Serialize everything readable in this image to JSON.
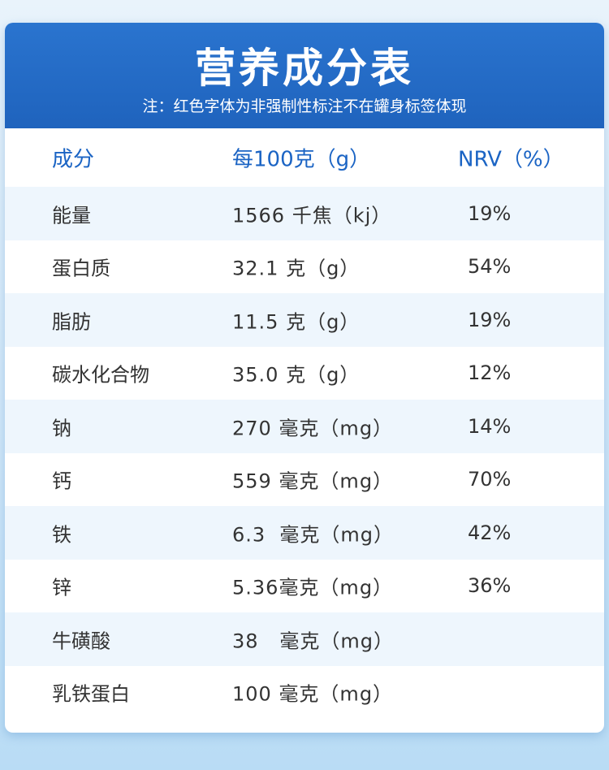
{
  "title": "营养成分表",
  "note": "注：红色字体为非强制性标注不在罐身标签体现",
  "header": {
    "col1": "成分",
    "col2": "每100克（g）",
    "col3": "NRV（%）"
  },
  "rows": [
    {
      "name": "能量",
      "amount": "1566 千焦（kj）",
      "nrv": "19%"
    },
    {
      "name": "蛋白质",
      "amount": "32.1 克（g）",
      "nrv": "54%"
    },
    {
      "name": "脂肪",
      "amount": "11.5 克（g）",
      "nrv": "19%"
    },
    {
      "name": "碳水化合物",
      "amount": "35.0 克（g）",
      "nrv": "12%"
    },
    {
      "name": "钠",
      "amount": "270 毫克（mg）",
      "nrv": "14%"
    },
    {
      "name": "钙",
      "amount": "559 毫克（mg）",
      "nrv": "70%"
    },
    {
      "name": "铁",
      "amount": "6.3  毫克（mg）",
      "nrv": "42%"
    },
    {
      "name": "锌",
      "amount": "5.36毫克（mg）",
      "nrv": "36%"
    },
    {
      "name": "牛磺酸",
      "amount": "38   毫克（mg）",
      "nrv": ""
    },
    {
      "name": "乳铁蛋白",
      "amount": "100 毫克（mg）",
      "nrv": ""
    }
  ]
}
